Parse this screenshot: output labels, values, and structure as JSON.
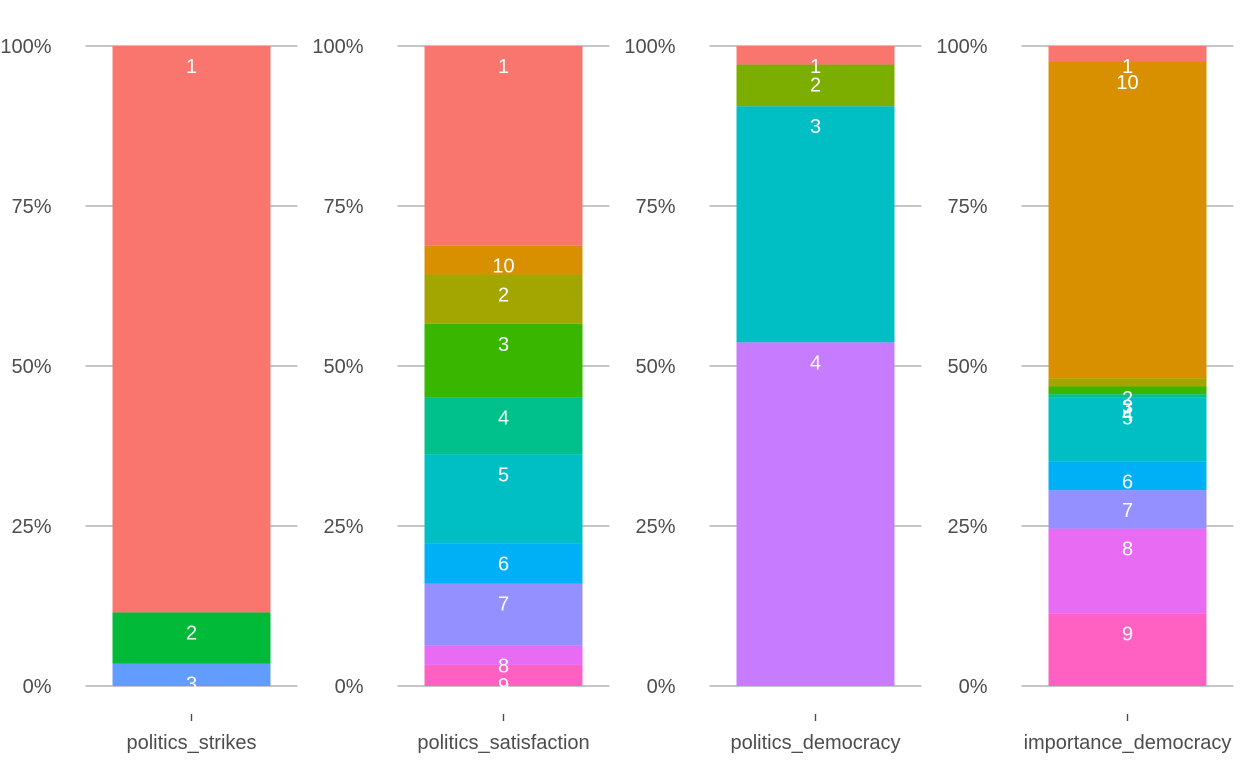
{
  "chart_data": [
    {
      "type": "bar",
      "stacked": true,
      "category": "politics_strikes",
      "y_tick_labels": [
        "0%",
        "25%",
        "50%",
        "75%",
        "100%"
      ],
      "ylim": [
        0,
        100
      ],
      "grid": false,
      "segments": [
        {
          "label": "3",
          "value": 3.5,
          "color": "#619CFF"
        },
        {
          "label": "2",
          "value": 8.0,
          "color": "#00BA38"
        },
        {
          "label": "1",
          "value": 88.5,
          "color": "#F8766D"
        }
      ]
    },
    {
      "type": "bar",
      "stacked": true,
      "category": "politics_satisfaction",
      "y_tick_labels": [
        "0%",
        "25%",
        "50%",
        "75%",
        "100%"
      ],
      "ylim": [
        0,
        100
      ],
      "grid": false,
      "segments": [
        {
          "label": "9",
          "value": 3.3,
          "color": "#FF61C3"
        },
        {
          "label": "8",
          "value": 3.0,
          "color": "#E76BF3"
        },
        {
          "label": "7",
          "value": 9.7,
          "color": "#9590FF"
        },
        {
          "label": "6",
          "value": 6.3,
          "color": "#00B0F6"
        },
        {
          "label": "5",
          "value": 13.9,
          "color": "#00BFC4"
        },
        {
          "label": "4",
          "value": 8.9,
          "color": "#00C08B"
        },
        {
          "label": "3",
          "value": 11.5,
          "color": "#39B600"
        },
        {
          "label": "2",
          "value": 7.7,
          "color": "#A3A500"
        },
        {
          "label": "10",
          "value": 4.5,
          "color": "#D89000"
        },
        {
          "label": "1",
          "value": 31.2,
          "color": "#F8766D"
        }
      ]
    },
    {
      "type": "bar",
      "stacked": true,
      "category": "politics_democracy",
      "y_tick_labels": [
        "0%",
        "25%",
        "50%",
        "75%",
        "100%"
      ],
      "ylim": [
        0,
        100
      ],
      "grid": false,
      "segments": [
        {
          "label": "4",
          "value": 53.7,
          "color": "#C77CFF"
        },
        {
          "label": "3",
          "value": 36.9,
          "color": "#00BFC4"
        },
        {
          "label": "2",
          "value": 6.5,
          "color": "#7CAE00"
        },
        {
          "label": "1",
          "value": 2.9,
          "color": "#F8766D"
        }
      ]
    },
    {
      "type": "bar",
      "stacked": true,
      "category": "importance_democracy",
      "y_tick_labels": [
        "0%",
        "25%",
        "50%",
        "75%",
        "100%"
      ],
      "ylim": [
        0,
        100
      ],
      "grid": false,
      "segments": [
        {
          "label": "9",
          "value": 11.3,
          "color": "#FF61C3"
        },
        {
          "label": "8",
          "value": 13.3,
          "color": "#E76BF3"
        },
        {
          "label": "7",
          "value": 6.0,
          "color": "#9590FF"
        },
        {
          "label": "6",
          "value": 4.5,
          "color": "#00B0F6"
        },
        {
          "label": "5",
          "value": 10.0,
          "color": "#00BFC4"
        },
        {
          "label": "4",
          "value": 0.5,
          "color": "#00C08B"
        },
        {
          "label": "3",
          "value": 1.2,
          "color": "#39B600"
        },
        {
          "label": "2",
          "value": 1.3,
          "color": "#A3A500"
        },
        {
          "label": "10",
          "value": 49.4,
          "color": "#D89000"
        },
        {
          "label": "1",
          "value": 2.5,
          "color": "#F8766D"
        }
      ]
    }
  ]
}
